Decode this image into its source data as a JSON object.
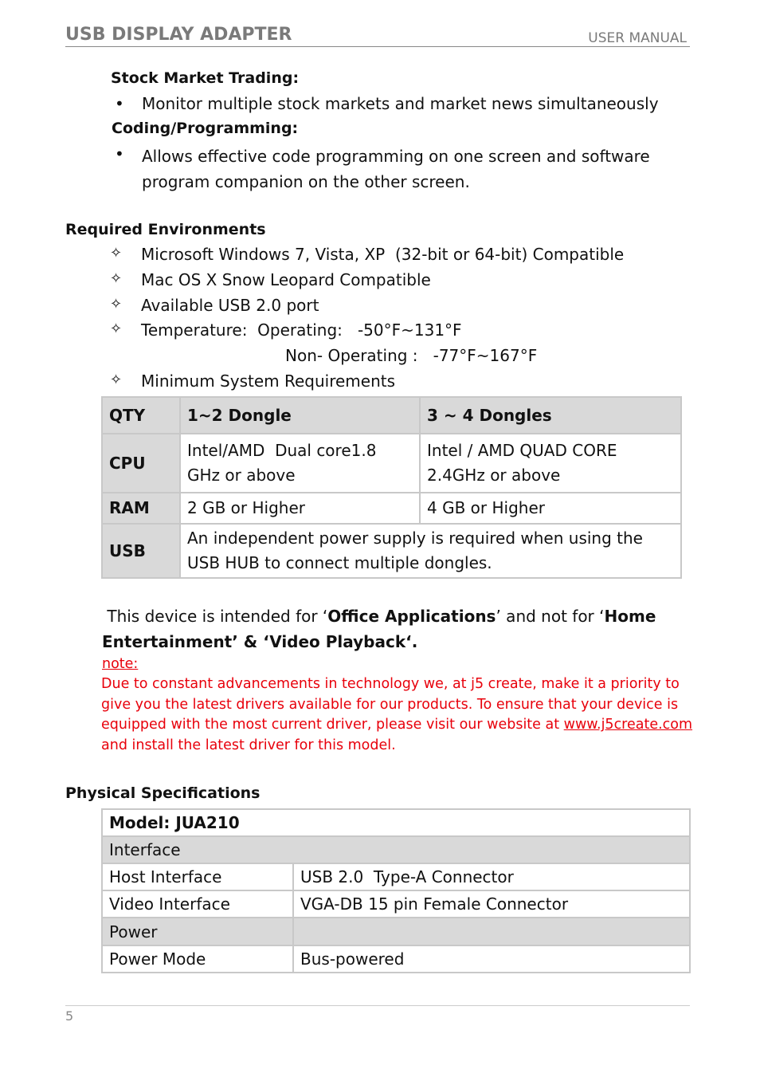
{
  "header": {
    "title": "USB DISPLAY ADAPTER",
    "subtitle": "USER MANUAL"
  },
  "uses": [
    {
      "heading": "Stock Market Trading:",
      "bullets": [
        "Monitor multiple stock markets and market news simultaneously"
      ]
    },
    {
      "heading": "Coding/Programming:",
      "bullets": [
        "Allows effective code programming on one screen and software program companion on the other screen."
      ]
    }
  ],
  "environments": {
    "heading": "Required Environments",
    "items": [
      "Microsoft Windows 7, Vista, XP  (32-bit or 64-bit) Compatible",
      "Mac OS X Snow Leopard Compatible",
      "Available USB 2.0 port",
      "Temperature:  Operating:   -50°F~131°F",
      "Minimum System Requirements"
    ],
    "temperature_continued": "Non- Operating :   -77°F~167°F"
  },
  "requirements_table": {
    "header": [
      "QTY",
      "1~2 Dongle",
      "3 ~ 4 Dongles"
    ],
    "rows": [
      [
        "CPU",
        "Intel/AMD  Dual core1.8 GHz or above",
        "Intel / AMD QUAD CORE 2.4GHz or above"
      ],
      [
        "RAM",
        "2 GB or Higher",
        "4 GB or Higher"
      ],
      [
        "USB",
        "An independent power supply is required when using the USB HUB to connect multiple dongles."
      ]
    ]
  },
  "intended_use": [
    "This device is intended for ‘",
    "Office Applications",
    "’ and not for ‘",
    "Home Entertainment",
    "’ & ‘",
    "Video Playback",
    "‘."
  ],
  "note": {
    "label": "note:",
    "text": "Due to constant advancements in technology we, at j5 create, make it a priority to give you the latest drivers available for our products. To ensure that your device is equipped with the most current driver, please visit our website at",
    "link": "www.j5create.com",
    "tail": " and install the latest driver for this model."
  },
  "physical": {
    "heading": "Physical Specifications",
    "model": "Model: JUA210",
    "rows": [
      [
        "Interface"
      ],
      [
        "Host Interface",
        "USB 2.0  Type-A Connector"
      ],
      [
        "Video Interface",
        "VGA-DB 15 pin Female Connector"
      ],
      [
        "Power"
      ],
      [
        "Power Mode",
        "Bus-powered"
      ]
    ]
  },
  "footer": {
    "page": "5"
  }
}
